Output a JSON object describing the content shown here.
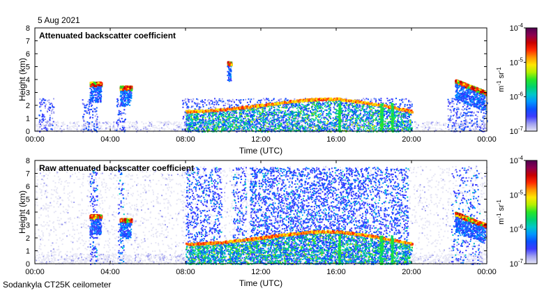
{
  "date_label": "5 Aug 2021",
  "footer": "Sodankyla CT25K ceilometer",
  "colorbar": {
    "colors": [
      "#e6e6f5",
      "#a0a0f0",
      "#3c3cff",
      "#0a50ff",
      "#0096ff",
      "#00c8c8",
      "#00d26e",
      "#28e628",
      "#b4f000",
      "#ffe600",
      "#ff9600",
      "#ff2800",
      "#c80000",
      "#8c0050",
      "#500050"
    ],
    "tick_labels": [
      "10",
      "10",
      "10",
      "10"
    ],
    "tick_exponents": [
      "-4",
      "-5",
      "-6",
      "-7"
    ],
    "unit_parts": [
      "m",
      "-1",
      " sr",
      "-1"
    ]
  },
  "chart_data": [
    {
      "type": "heatmap",
      "title": "Attenuated backscatter coefficient",
      "xlabel": "Time (UTC)",
      "ylabel": "Height (km)",
      "x_ticks": [
        "00:00",
        "04:00",
        "08:00",
        "12:00",
        "16:00",
        "20:00",
        "00:00"
      ],
      "y_ticks": [
        "0",
        "1",
        "2",
        "3",
        "4",
        "5",
        "6",
        "7",
        "8"
      ],
      "xlim_hours": [
        0,
        24
      ],
      "ylim_km": [
        0,
        8
      ],
      "color_scale": "log",
      "color_range": [
        1e-07,
        0.0001
      ],
      "features": [
        {
          "name": "cloud layer",
          "time_hours": [
            2.9,
            3.5
          ],
          "height_km": 3.7
        },
        {
          "name": "cloud layer",
          "time_hours": [
            4.5,
            5.1
          ],
          "height_km": 3.4
        },
        {
          "name": "cloud layer",
          "time_hours": [
            10.2,
            10.4
          ],
          "height_km": 5.3
        },
        {
          "name": "boundary layer top",
          "time_hours": [
            8,
            20
          ],
          "height_km": [
            1.6,
            2.2,
            2.8,
            2.0,
            1.8
          ]
        },
        {
          "name": "cloud layer",
          "time_hours": [
            22.3,
            23.9
          ],
          "height_km": [
            3.9,
            3.0
          ]
        }
      ]
    },
    {
      "type": "heatmap",
      "title": "Raw attenuated backscatter coefficient",
      "xlabel": "Time (UTC)",
      "ylabel": "Height (km)",
      "x_ticks": [
        "00:00",
        "04:00",
        "08:00",
        "12:00",
        "16:00",
        "20:00",
        "00:00"
      ],
      "y_ticks": [
        "0",
        "1",
        "2",
        "3",
        "4",
        "5",
        "6",
        "7",
        "8"
      ],
      "xlim_hours": [
        0,
        24
      ],
      "ylim_km": [
        0,
        8
      ],
      "color_scale": "log",
      "color_range": [
        1e-07,
        0.0001
      ],
      "features": [
        {
          "name": "cloud layer",
          "time_hours": [
            2.9,
            3.5
          ],
          "height_km": 3.7
        },
        {
          "name": "cloud layer",
          "time_hours": [
            4.5,
            5.1
          ],
          "height_km": 3.4
        },
        {
          "name": "boundary layer top",
          "time_hours": [
            8,
            20
          ],
          "height_km": [
            1.6,
            2.2,
            2.8,
            2.0,
            1.8
          ]
        },
        {
          "name": "cloud layer",
          "time_hours": [
            22.3,
            23.9
          ],
          "height_km": [
            3.9,
            3.0
          ]
        }
      ]
    }
  ]
}
